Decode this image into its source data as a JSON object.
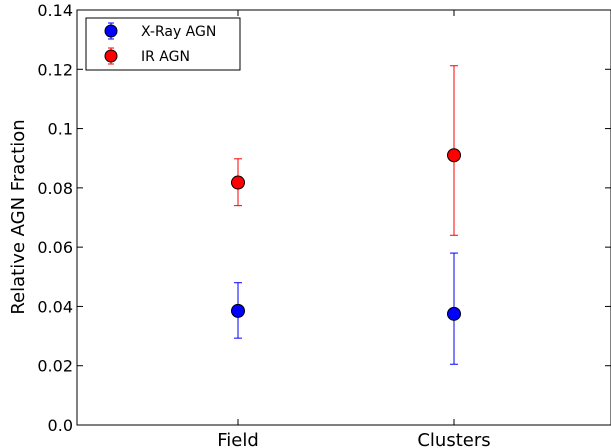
{
  "chart_data": {
    "type": "scatter",
    "ylabel": "Relative AGN Fraction",
    "xlabel": "",
    "categories": [
      "Field",
      "Clusters"
    ],
    "ylim": [
      0.0,
      0.14
    ],
    "yticks": [
      "0.0",
      "0.02",
      "0.04",
      "0.06",
      "0.08",
      "0.1",
      "0.12",
      "0.14"
    ],
    "grid": false,
    "legend": "top-left",
    "series": [
      {
        "name": "X-Ray AGN",
        "color": "#0000ff",
        "values": [
          0.0385,
          0.0375
        ],
        "err_low": [
          0.0293,
          0.0205
        ],
        "err_high": [
          0.048,
          0.058
        ]
      },
      {
        "name": "IR AGN",
        "color": "#ff0000",
        "values": [
          0.0818,
          0.091
        ],
        "err_low": [
          0.074,
          0.064
        ],
        "err_high": [
          0.0898,
          0.1212
        ]
      }
    ]
  }
}
